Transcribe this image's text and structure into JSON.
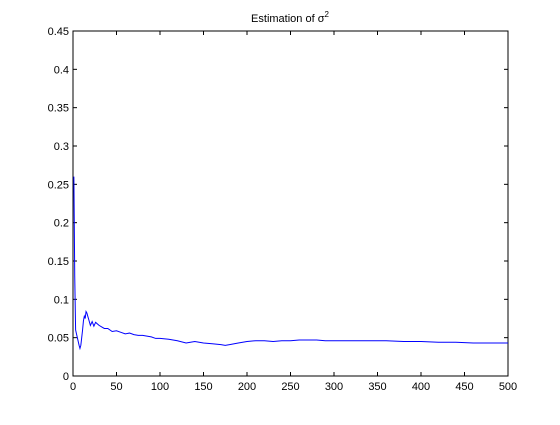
{
  "chart_data": {
    "type": "line",
    "title": "Estimation of",
    "title_math": {
      "symbol": "σ",
      "superscript": "2"
    },
    "xlabel": "",
    "ylabel": "",
    "xlim": [
      0,
      500
    ],
    "ylim": [
      0,
      0.45
    ],
    "xticks": [
      "0",
      "50",
      "100",
      "150",
      "200",
      "250",
      "300",
      "350",
      "400",
      "450",
      "500"
    ],
    "yticks": [
      "0",
      "0.05",
      "0.1",
      "0.15",
      "0.2",
      "0.25",
      "0.3",
      "0.35",
      "0.4",
      "0.45"
    ],
    "grid": false,
    "legend": "none",
    "line_color": "#0000ff",
    "series": [
      {
        "x": [
          1,
          2,
          3,
          4,
          5,
          6,
          7,
          8,
          9,
          10,
          11,
          12,
          13,
          14,
          15,
          16,
          17,
          18,
          19,
          20,
          22,
          24,
          26,
          28,
          30,
          33,
          36,
          40,
          45,
          50,
          55,
          60,
          65,
          70,
          75,
          80,
          85,
          90,
          95,
          100,
          110,
          120,
          130,
          135,
          140,
          150,
          160,
          170,
          175,
          180,
          190,
          200,
          210,
          220,
          230,
          240,
          250,
          260,
          270,
          280,
          290,
          300,
          320,
          340,
          360,
          380,
          400,
          420,
          440,
          460,
          480,
          500
        ],
        "y": [
          0.26,
          0.13,
          0.06,
          0.055,
          0.05,
          0.045,
          0.04,
          0.036,
          0.04,
          0.05,
          0.06,
          0.072,
          0.078,
          0.075,
          0.084,
          0.082,
          0.078,
          0.074,
          0.07,
          0.066,
          0.071,
          0.065,
          0.07,
          0.068,
          0.066,
          0.064,
          0.062,
          0.062,
          0.058,
          0.059,
          0.057,
          0.055,
          0.056,
          0.054,
          0.053,
          0.053,
          0.052,
          0.051,
          0.049,
          0.049,
          0.048,
          0.046,
          0.043,
          0.044,
          0.045,
          0.043,
          0.042,
          0.041,
          0.04,
          0.041,
          0.043,
          0.045,
          0.046,
          0.046,
          0.045,
          0.046,
          0.046,
          0.047,
          0.047,
          0.047,
          0.046,
          0.046,
          0.046,
          0.046,
          0.046,
          0.045,
          0.045,
          0.044,
          0.044,
          0.043,
          0.043,
          0.043
        ]
      }
    ]
  }
}
